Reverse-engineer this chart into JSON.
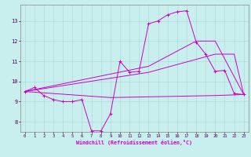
{
  "bg_color": "#c8eeee",
  "line_color": "#cc00cc",
  "xlabel": "Windchill (Refroidissement éolien,°C)",
  "xlim": [
    -0.5,
    23.5
  ],
  "ylim": [
    7.5,
    13.8
  ],
  "xticks": [
    0,
    1,
    2,
    3,
    4,
    5,
    6,
    7,
    8,
    9,
    10,
    11,
    12,
    13,
    14,
    15,
    16,
    17,
    18,
    19,
    20,
    21,
    22,
    23
  ],
  "yticks": [
    8,
    9,
    10,
    11,
    12,
    13
  ],
  "line1_x": [
    0,
    1,
    2,
    3,
    4,
    5,
    6,
    7,
    8,
    9,
    10,
    11,
    12,
    13,
    14,
    15,
    16,
    17,
    18,
    19,
    20,
    21,
    22,
    23
  ],
  "line1_y": [
    9.5,
    9.7,
    9.3,
    9.1,
    9.0,
    9.0,
    9.1,
    7.55,
    7.55,
    8.4,
    11.0,
    10.45,
    10.5,
    12.85,
    13.0,
    13.3,
    13.45,
    13.5,
    11.95,
    11.35,
    10.5,
    10.55,
    9.4,
    9.35
  ],
  "line2_x": [
    0,
    9,
    20,
    23
  ],
  "line2_y": [
    9.5,
    9.2,
    9.3,
    9.35
  ],
  "line3_x": [
    0,
    13,
    20,
    22,
    23
  ],
  "line3_y": [
    9.5,
    10.45,
    11.35,
    11.35,
    9.35
  ],
  "line4_x": [
    0,
    13,
    18,
    20,
    23
  ],
  "line4_y": [
    9.5,
    10.75,
    12.0,
    12.0,
    9.35
  ]
}
